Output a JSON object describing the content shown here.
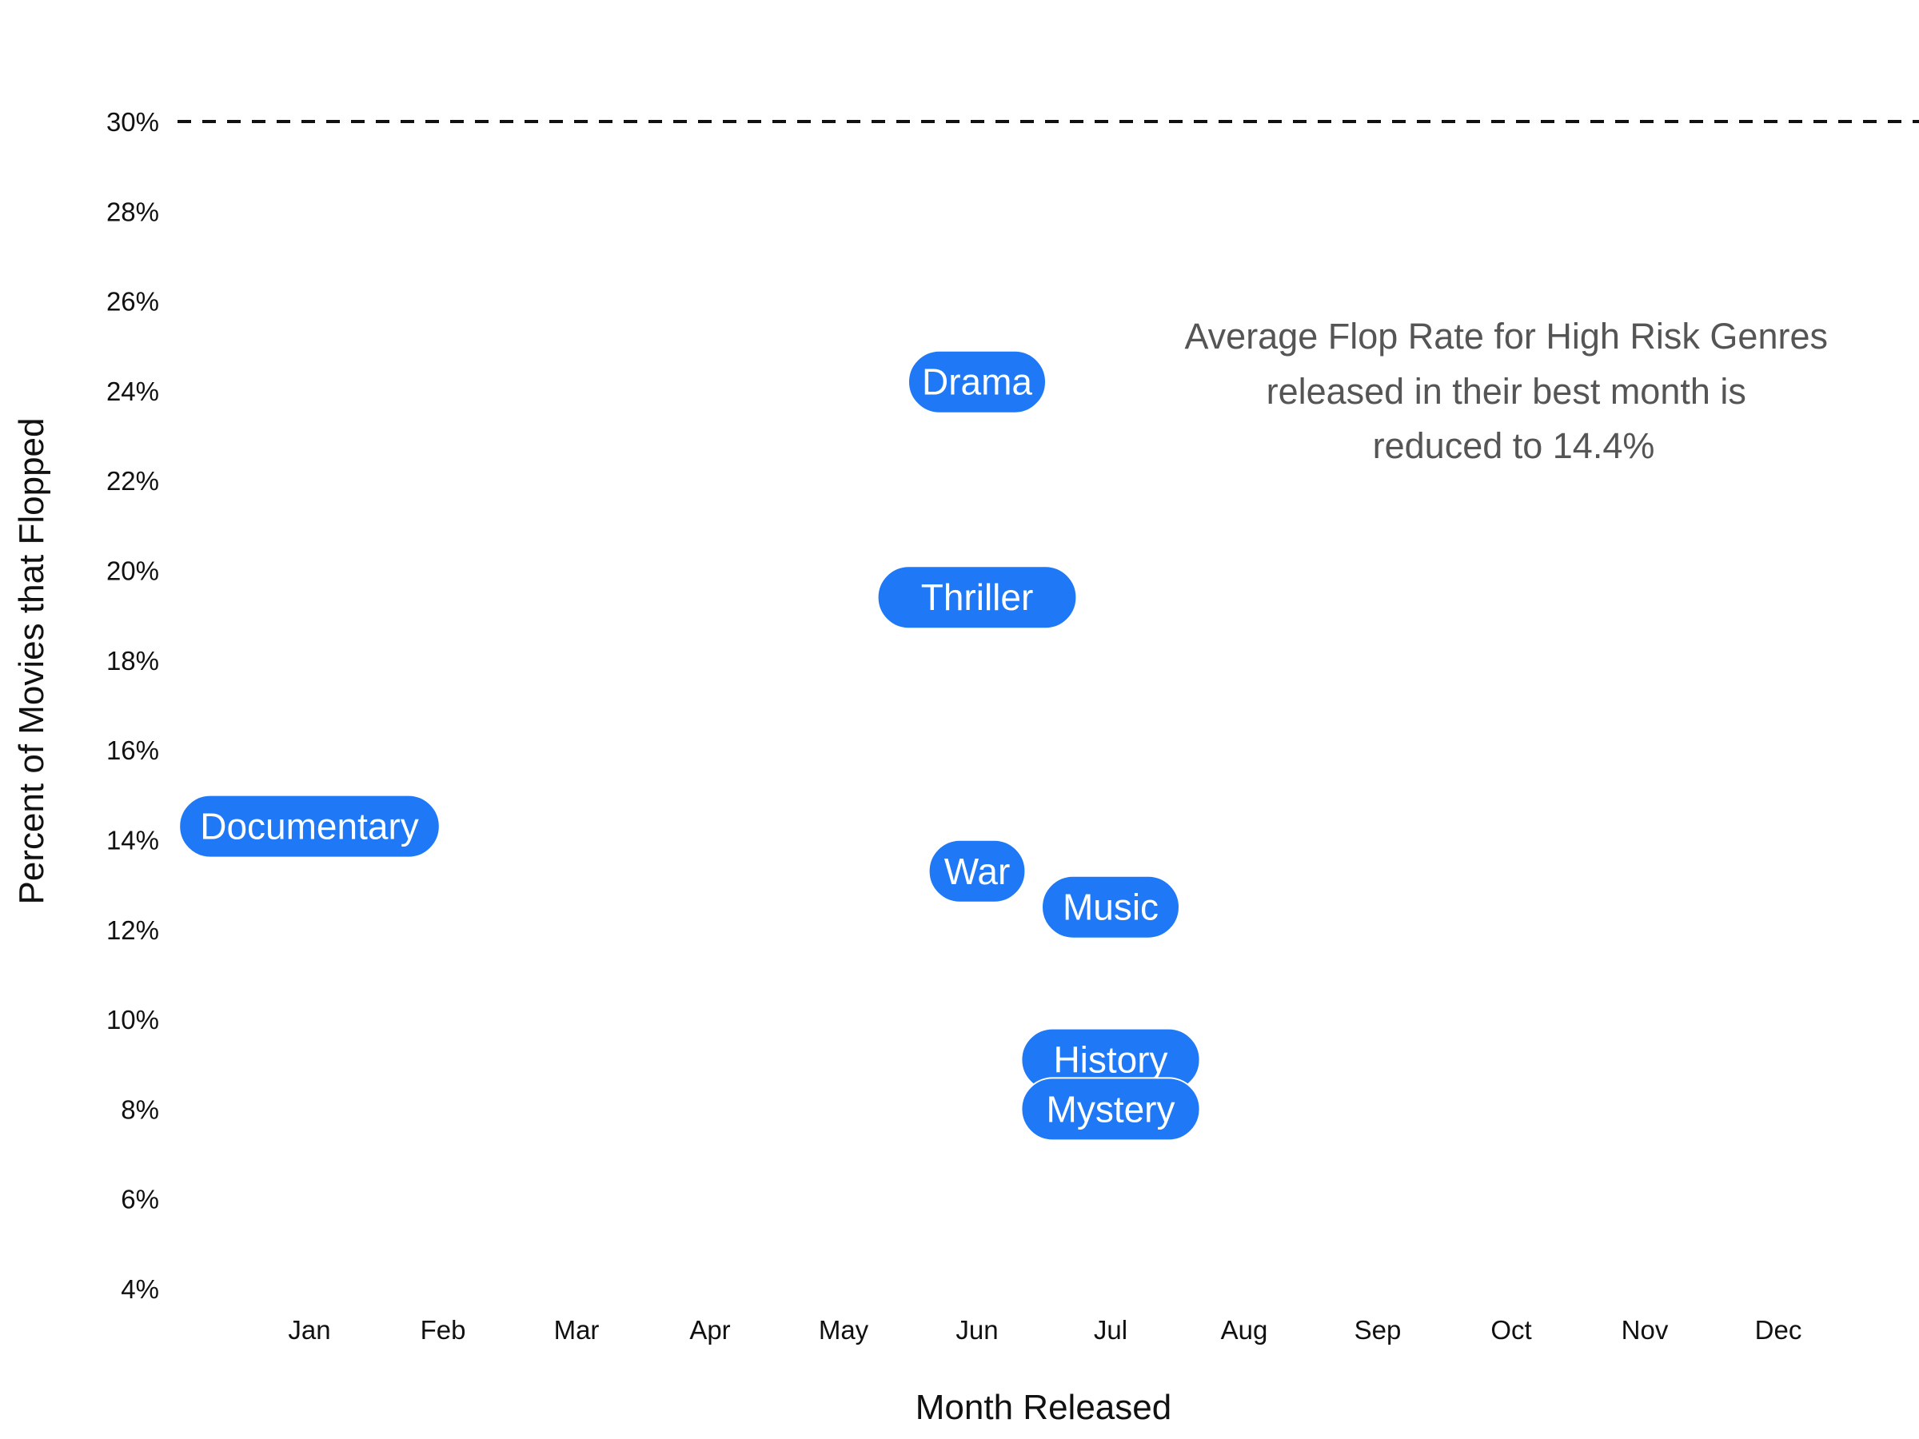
{
  "chart_data": {
    "type": "scatter",
    "title": "",
    "xlabel": "Month Released",
    "ylabel": "Percent of Movies that Flopped",
    "categories": [
      "Jan",
      "Feb",
      "Mar",
      "Apr",
      "May",
      "Jun",
      "Jul",
      "Aug",
      "Sep",
      "Oct",
      "Nov",
      "Dec"
    ],
    "ylim": [
      0.04,
      0.3
    ],
    "yticks": [
      "4%",
      "6%",
      "8%",
      "10%",
      "12%",
      "14%",
      "16%",
      "18%",
      "20%",
      "22%",
      "24%",
      "26%",
      "28%",
      "30%"
    ],
    "grid": false,
    "reference_line": {
      "value": 0.3,
      "style": "dashed",
      "color": "#111111"
    },
    "annotation": [
      "Average Flop Rate for High Risk Genres",
      "released in their best month is",
      "reduced to 14.4%"
    ],
    "points_style": {
      "fill": "#1f78f5",
      "text_color": "#ffffff"
    },
    "points": [
      {
        "label": "Documentary",
        "month": "Jan",
        "value": 0.143
      },
      {
        "label": "Drama",
        "month": "Jun",
        "value": 0.242
      },
      {
        "label": "Thriller",
        "month": "Jun",
        "value": 0.194
      },
      {
        "label": "War",
        "month": "Jun",
        "value": 0.133
      },
      {
        "label": "Music",
        "month": "Jul",
        "value": 0.125
      },
      {
        "label": "History",
        "month": "Jul",
        "value": 0.091
      },
      {
        "label": "Mystery",
        "month": "Jul",
        "value": 0.08
      }
    ]
  }
}
